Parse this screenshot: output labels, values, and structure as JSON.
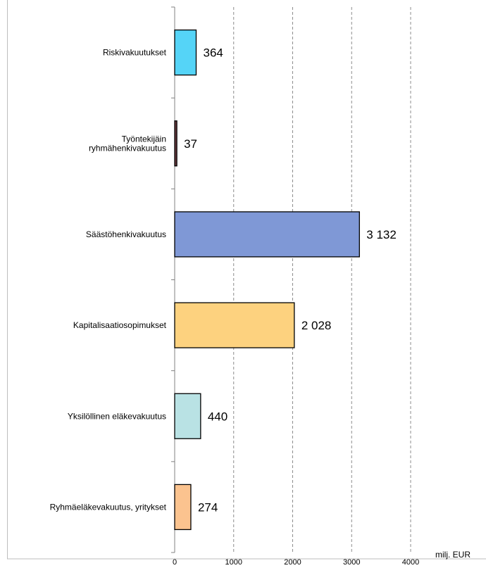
{
  "chart_data": {
    "type": "bar",
    "orientation": "horizontal",
    "categories": [
      [
        "Riskivakuutukset"
      ],
      [
        "Työntekijäin",
        "ryhmähenkivakuutus"
      ],
      [
        "Säästöhenkivakuutus"
      ],
      [
        "Kapitalisaatiosopimukset"
      ],
      [
        "Yksilöllinen eläkevakuutus"
      ],
      [
        "Ryhmäeläkevakuutus, yritykset"
      ]
    ],
    "values": [
      364,
      37,
      3132,
      2028,
      440,
      274
    ],
    "value_labels": [
      "364",
      "37",
      "3 132",
      "2 028",
      "440",
      "274"
    ],
    "colors": [
      "#55d4f7",
      "#6b3a3f",
      "#7f98d6",
      "#fdd27f",
      "#b9e2e4",
      "#fbc38f"
    ],
    "xlim": [
      0,
      4000
    ],
    "xticks": [
      0,
      1000,
      2000,
      3000,
      4000
    ],
    "xlabel": "milj. EUR",
    "grid": "vertical-dashed",
    "legend": "none"
  }
}
